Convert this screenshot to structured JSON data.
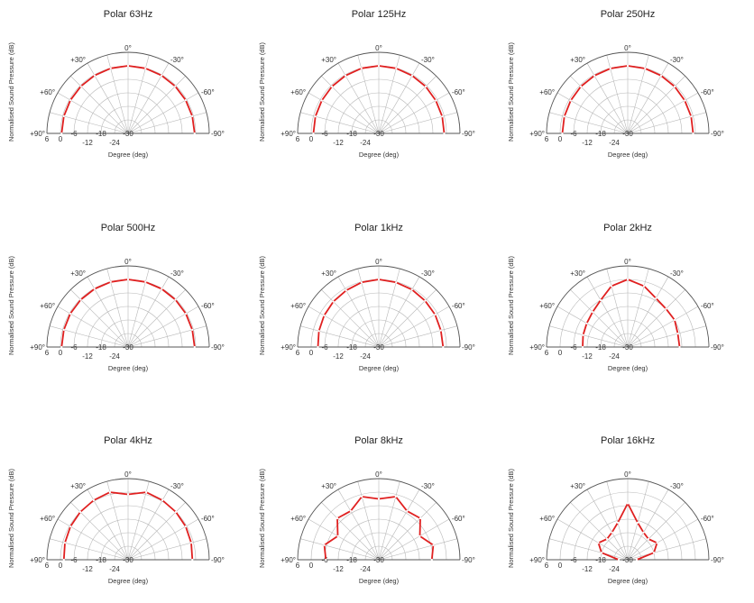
{
  "chart_data": [
    {
      "type": "polar",
      "title": "Polar 63Hz",
      "xlabel": "Degree  (deg)",
      "ylabel": "Normalised Sound Pressure  (dB)",
      "angles": [
        90,
        75,
        60,
        45,
        30,
        15,
        0,
        -15,
        -30,
        -45,
        -60,
        -75,
        -90
      ],
      "values": [
        -0.5,
        -0.5,
        -0.5,
        -0.4,
        -0.3,
        -0.1,
        0,
        -0.1,
        -0.3,
        -0.4,
        -0.5,
        -0.5,
        -0.5
      ]
    },
    {
      "type": "polar",
      "title": "Polar 125Hz",
      "xlabel": "Degree  (deg)",
      "ylabel": "Normalised Sound Pressure  (dB)",
      "angles": [
        90,
        75,
        60,
        45,
        30,
        15,
        0,
        -15,
        -30,
        -45,
        -60,
        -75,
        -90
      ],
      "values": [
        -1,
        -0.9,
        -0.8,
        -0.6,
        -0.4,
        -0.1,
        0,
        -0.1,
        -0.4,
        -0.6,
        -0.8,
        -0.9,
        -1
      ]
    },
    {
      "type": "polar",
      "title": "Polar 250Hz",
      "xlabel": "Degree  (deg)",
      "ylabel": "Normalised Sound Pressure  (dB)",
      "angles": [
        90,
        75,
        60,
        45,
        30,
        15,
        0,
        -15,
        -30,
        -45,
        -60,
        -75,
        -90
      ],
      "values": [
        -1,
        -0.9,
        -0.8,
        -0.6,
        -0.4,
        -0.2,
        0,
        -0.2,
        -0.4,
        -0.6,
        -0.8,
        -0.9,
        -1
      ]
    },
    {
      "type": "polar",
      "title": "Polar 500Hz",
      "xlabel": "Degree  (deg)",
      "ylabel": "Normalised Sound Pressure  (dB)",
      "angles": [
        90,
        75,
        60,
        45,
        30,
        15,
        0,
        -15,
        -30,
        -45,
        -60,
        -75,
        -90
      ],
      "values": [
        -0.5,
        -0.5,
        -0.4,
        -0.3,
        -0.2,
        -0.1,
        0,
        -0.1,
        -0.2,
        -0.3,
        -0.4,
        -0.5,
        -0.5
      ]
    },
    {
      "type": "polar",
      "title": "Polar 1kHz",
      "xlabel": "Degree  (deg)",
      "ylabel": "Normalised Sound Pressure  (dB)",
      "angles": [
        90,
        75,
        60,
        45,
        30,
        15,
        0,
        -15,
        -30,
        -45,
        -60,
        -75,
        -90
      ],
      "values": [
        -3,
        -2.5,
        -2,
        -1.5,
        -1,
        -0.3,
        0,
        -0.3,
        -0.6,
        -1,
        -1.2,
        -1.5,
        -1.5
      ]
    },
    {
      "type": "polar",
      "title": "Polar 2kHz",
      "xlabel": "Degree  (deg)",
      "ylabel": "Normalised Sound Pressure  (dB)",
      "angles": [
        90,
        75,
        60,
        45,
        30,
        15,
        0,
        -15,
        -30,
        -45,
        -60,
        -75,
        -90
      ],
      "values": [
        -10,
        -9.5,
        -9,
        -8,
        -6,
        -2,
        0,
        -2,
        -5,
        -6,
        -6,
        -7,
        -7
      ]
    },
    {
      "type": "polar",
      "title": "Polar 4kHz",
      "xlabel": "Degree  (deg)",
      "ylabel": "Normalised Sound Pressure  (dB)",
      "angles": [
        90,
        75,
        60,
        45,
        30,
        15,
        0,
        -15,
        -30,
        -45,
        -60,
        -75,
        -90
      ],
      "values": [
        -1.5,
        -1,
        -0.5,
        0,
        0.5,
        1,
        -1,
        1,
        0.5,
        0,
        -0.5,
        -1,
        -1.5
      ]
    },
    {
      "type": "polar",
      "title": "Polar 8kHz",
      "xlabel": "Degree  (deg)",
      "ylabel": "Normalised Sound Pressure  (dB)",
      "angles": [
        90,
        75,
        60,
        45,
        30,
        15,
        0,
        -15,
        -30,
        -45,
        -60,
        -75,
        -90
      ],
      "values": [
        -6.5,
        -5,
        -9,
        -4,
        -5,
        -1,
        -3,
        -1,
        -5,
        -4,
        -9,
        -5,
        -6.5
      ]
    },
    {
      "type": "polar",
      "title": "Polar 16kHz",
      "xlabel": "Degree  (deg)",
      "ylabel": "Normalised Sound Pressure  (dB)",
      "angles": [
        90,
        75,
        60,
        45,
        30,
        15,
        0,
        -15,
        -30,
        -45,
        -60,
        -75,
        -90
      ],
      "values": [
        -26,
        -18,
        -15,
        -17,
        -16,
        -13,
        -5,
        -13,
        -16,
        -17,
        -15,
        -18,
        -26
      ]
    }
  ],
  "axis": {
    "angle_ticks": [
      "0°",
      "+30°",
      "-30°",
      "+60°",
      "-60°",
      "+90°",
      "-90°"
    ],
    "radial_ticks": [
      "6",
      "0",
      "-6",
      "-12",
      "-18",
      "-24",
      "-30"
    ],
    "r_max": 6,
    "r_min": -30,
    "r_step": 6
  },
  "style": {
    "line_color": "#e02020",
    "grid_color": "#b8b8b8"
  }
}
